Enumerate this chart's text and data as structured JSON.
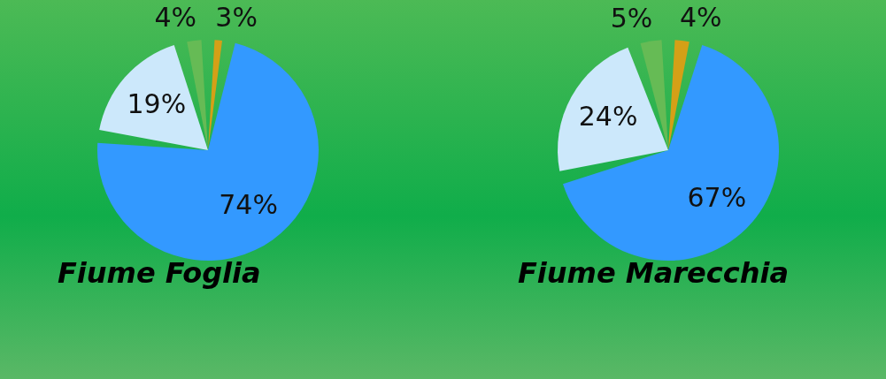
{
  "chart_data": [
    {
      "type": "pie",
      "title": "Fiume Foglia",
      "categories": [
        null,
        null,
        null,
        null
      ],
      "values": [
        3,
        74,
        19,
        4
      ],
      "value_labels": [
        "3%",
        "74%",
        "19%",
        "4%"
      ],
      "colors": [
        "#d4a017",
        "#3399ff",
        "#cce8fb",
        "#66bb55"
      ],
      "legend": false
    },
    {
      "type": "pie",
      "title": "Fiume Marecchia",
      "categories": [
        null,
        null,
        null,
        null
      ],
      "values": [
        4,
        67,
        24,
        5
      ],
      "value_labels": [
        "4%",
        "67%",
        "24%",
        "5%"
      ],
      "colors": [
        "#d4a017",
        "#3399ff",
        "#cce8fb",
        "#66bb55"
      ],
      "legend": false
    }
  ]
}
